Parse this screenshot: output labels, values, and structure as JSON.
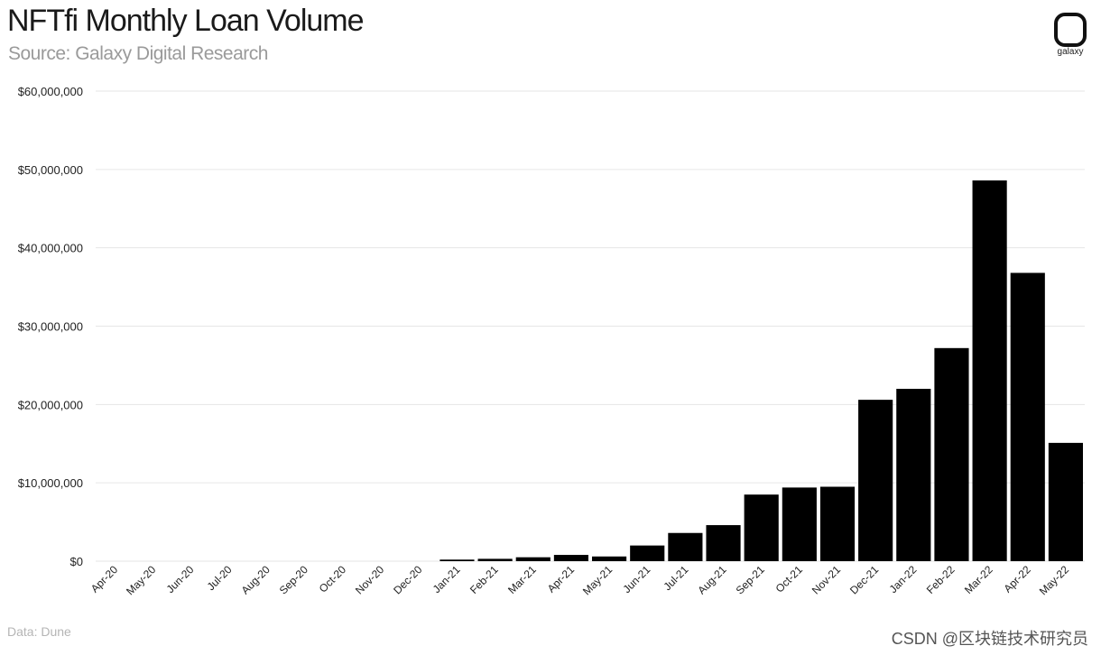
{
  "header": {
    "title": "NFTfi Monthly Loan Volume",
    "subtitle": "Source: Galaxy Digital Research"
  },
  "logo": {
    "label": "galaxy"
  },
  "footer": {
    "source": "Data: Dune"
  },
  "watermark": {
    "text": "CSDN @区块链技术研究员"
  },
  "colors": {
    "bar": "#000000",
    "grid": "#e6e6e6",
    "text": "#222222"
  },
  "chart_data": {
    "type": "bar",
    "title": "NFTfi Monthly Loan Volume",
    "subtitle": "Source: Galaxy Digital Research",
    "xlabel": "",
    "ylabel": "",
    "ylim": [
      0,
      60000000
    ],
    "grid": true,
    "yticks": [
      0,
      10000000,
      20000000,
      30000000,
      40000000,
      50000000,
      60000000
    ],
    "ytick_labels": [
      "$0",
      "$10,000,000",
      "$20,000,000",
      "$30,000,000",
      "$40,000,000",
      "$50,000,000",
      "$60,000,000"
    ],
    "categories": [
      "Apr-20",
      "May-20",
      "Jun-20",
      "Jul-20",
      "Aug-20",
      "Sep-20",
      "Oct-20",
      "Nov-20",
      "Dec-20",
      "Jan-21",
      "Feb-21",
      "Mar-21",
      "Apr-21",
      "May-21",
      "Jun-21",
      "Jul-21",
      "Aug-21",
      "Sep-21",
      "Oct-21",
      "Nov-21",
      "Dec-21",
      "Jan-22",
      "Feb-22",
      "Mar-22",
      "Apr-22",
      "May-22"
    ],
    "values": [
      0,
      0,
      0,
      0,
      0,
      0,
      0,
      0,
      0,
      200000,
      300000,
      500000,
      800000,
      600000,
      2000000,
      3600000,
      4600000,
      8500000,
      9400000,
      9500000,
      20600000,
      22000000,
      27200000,
      48600000,
      36800000,
      15100000
    ]
  }
}
